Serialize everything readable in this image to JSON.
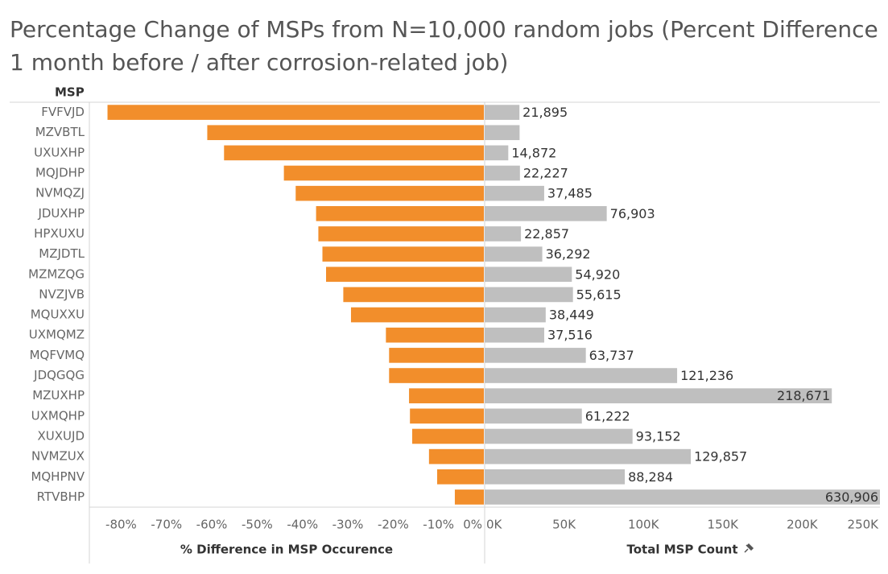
{
  "chart_data": {
    "type": "bar",
    "orientation": "horizontal",
    "title": [
      "Percentage Change of MSPs from N=10,000 random jobs (Percent Difference",
      "1 month before / after corrosion-related job)"
    ],
    "category_label": "MSP",
    "categories": [
      "FVFVJD",
      "MZVBTL",
      "UXUXHP",
      "MQJDHP",
      "NVMQZJ",
      "JDUXHP",
      "HPXUXU",
      "MZJDTL",
      "MZMZQG",
      "NVZJVB",
      "MQUXXU",
      "UXMQMZ",
      "MQFVMQ",
      "JDQGQG",
      "MZUXHP",
      "UXMQHP",
      "XUXUJD",
      "NVMZUX",
      "MQHPNV",
      "RTVBHP"
    ],
    "series": [
      {
        "name": "% Difference in MSP Occurence",
        "color": "#f28e2b",
        "values": [
          -83,
          -61,
          -57.3,
          -44.1,
          -41.5,
          -37,
          -36.5,
          -35.6,
          -34.8,
          -31,
          -29.3,
          -21.6,
          -20.9,
          -20.9,
          -16.5,
          -16.3,
          -15.8,
          -12.1,
          -10.3,
          -6.4
        ],
        "xlim": [
          -87,
          0
        ],
        "xticks": [
          {
            "value": -80,
            "label": "-80%"
          },
          {
            "value": -70,
            "label": "-70%"
          },
          {
            "value": -60,
            "label": "-60%"
          },
          {
            "value": -50,
            "label": "-50%"
          },
          {
            "value": -40,
            "label": "-40%"
          },
          {
            "value": -30,
            "label": "-30%"
          },
          {
            "value": -20,
            "label": "-20%"
          },
          {
            "value": -10,
            "label": "-10%"
          },
          {
            "value": 0,
            "label": "0%"
          }
        ]
      },
      {
        "name": "Total MSP Count",
        "color": "#bfbfbf",
        "values": [
          21895,
          22000,
          14872,
          22227,
          37485,
          76903,
          22857,
          36292,
          54920,
          55615,
          38449,
          37516,
          63737,
          121236,
          218671,
          61222,
          93152,
          129857,
          88284,
          630906
        ],
        "value_labels": [
          "21,895",
          null,
          "14,872",
          "22,227",
          "37,485",
          "76,903",
          "22,857",
          "36,292",
          "54,920",
          "55,615",
          "38,449",
          "37,516",
          "63,737",
          "121,236",
          "218,671",
          "61,222",
          "93,152",
          "129,857",
          "88,284",
          "630,906"
        ],
        "xlim": [
          0,
          249000
        ],
        "xticks": [
          {
            "value": 0,
            "label": "0K"
          },
          {
            "value": 50000,
            "label": "50K"
          },
          {
            "value": 100000,
            "label": "100K"
          },
          {
            "value": 150000,
            "label": "150K"
          },
          {
            "value": 200000,
            "label": "200K"
          },
          {
            "value": 250000,
            "label": "250K"
          }
        ]
      }
    ]
  }
}
